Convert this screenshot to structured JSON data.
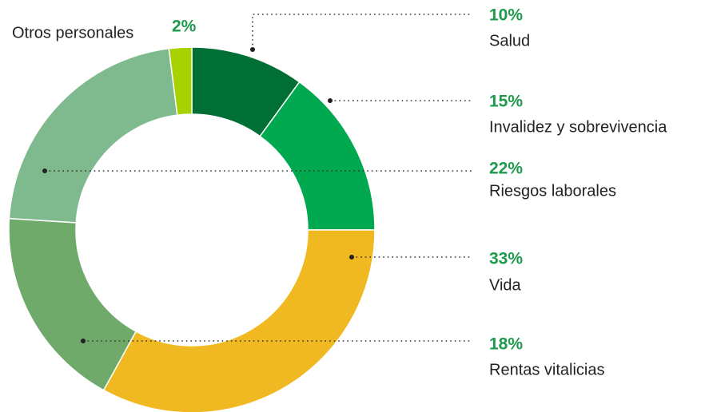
{
  "chart_data": {
    "type": "donut",
    "categories": [
      "Salud",
      "Invalidez y sobrevivencia",
      "Vida",
      "Rentas vitalicias",
      "Riesgos laborales",
      "Otros personales"
    ],
    "values": [
      10,
      15,
      33,
      18,
      22,
      2
    ],
    "value_labels": [
      "10%",
      "15%",
      "33%",
      "18%",
      "22%",
      "2%"
    ],
    "colors": [
      "#006f35",
      "#00a94f",
      "#f0b921",
      "#6faa6a",
      "#7fba8f",
      "#a8d100"
    ]
  }
}
